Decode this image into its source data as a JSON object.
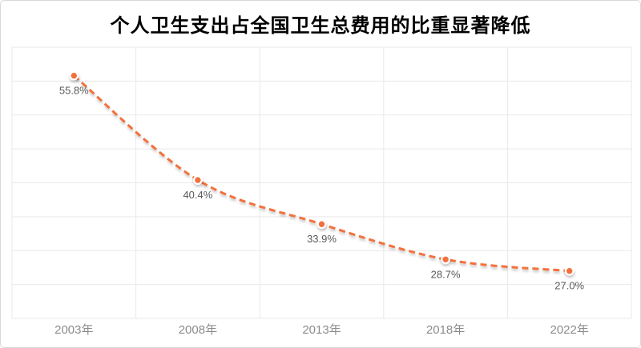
{
  "chart_data": {
    "type": "line",
    "title": "个人卫生支出占全国卫生总费用的比重显著降低",
    "categories": [
      "2003年",
      "2008年",
      "2013年",
      "2018年",
      "2022年"
    ],
    "values": [
      55.8,
      40.4,
      33.9,
      28.7,
      27.0
    ],
    "point_labels": [
      "55.8%",
      "40.4%",
      "33.9%",
      "28.7%",
      "27.0%"
    ],
    "xlabel": "",
    "ylabel": "",
    "ylim": [
      20,
      60
    ],
    "y_tick_interval": 5,
    "y_tick_labels_visible": false,
    "grid": true,
    "legend_position": "none",
    "line_style": "dashed",
    "smooth": true,
    "colors": {
      "line": "#f2713d",
      "marker_fill": "#f2703c",
      "marker_border": "#ffffff",
      "point_label": "#595959",
      "axis_label": "#8c8c8c",
      "grid": "#e9e9e9",
      "title": "#000000"
    }
  }
}
